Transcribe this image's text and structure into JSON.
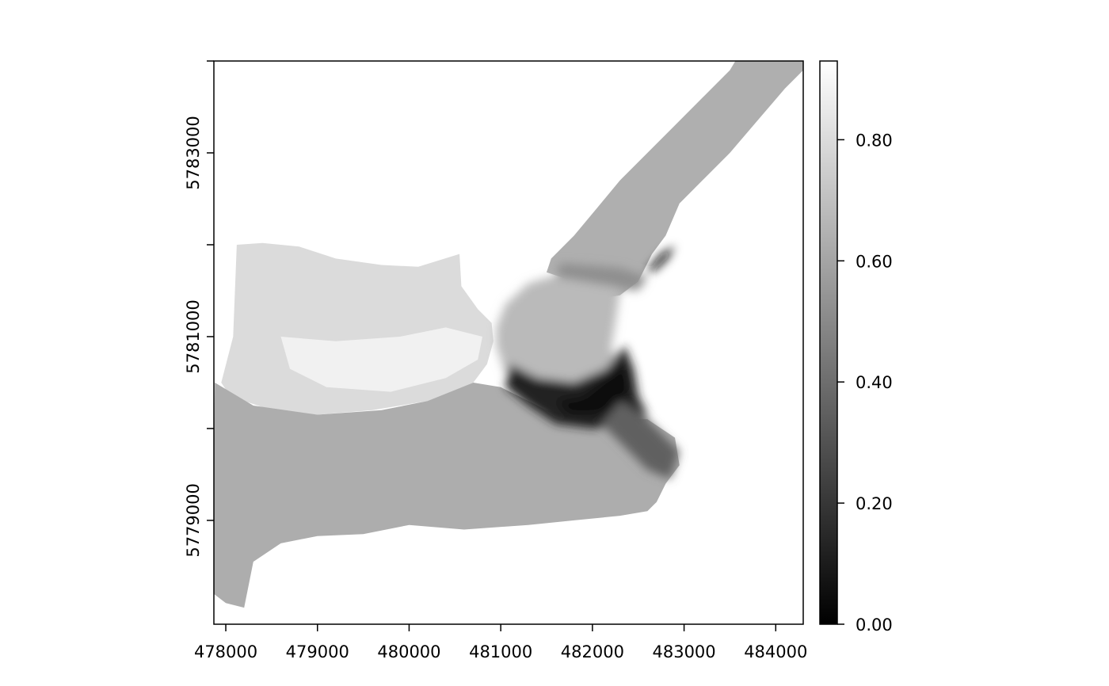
{
  "chart_data": {
    "type": "heatmap",
    "title": "",
    "xlabel": "",
    "ylabel": "",
    "xlim": [
      477870,
      484300
    ],
    "ylim": [
      5777870,
      5784000
    ],
    "x_ticks": [
      {
        "value": 478000,
        "label": "478000"
      },
      {
        "value": 479000,
        "label": "479000"
      },
      {
        "value": 480000,
        "label": "480000"
      },
      {
        "value": 481000,
        "label": "481000"
      },
      {
        "value": 482000,
        "label": "482000"
      },
      {
        "value": 483000,
        "label": "483000"
      },
      {
        "value": 484000,
        "label": "484000"
      }
    ],
    "y_ticks": [
      {
        "value": 5779000,
        "label": "5779000"
      },
      {
        "value": 5780000,
        "label": ""
      },
      {
        "value": 5781000,
        "label": "5781000"
      },
      {
        "value": 5782000,
        "label": ""
      },
      {
        "value": 5783000,
        "label": "5783000"
      },
      {
        "value": 5784000,
        "label": ""
      }
    ],
    "colorbar": {
      "min": 0.0,
      "max": 0.93,
      "colormap": "grayscale (black = low, white = high)",
      "ticks": [
        {
          "value": 0.0,
          "label": "0.00"
        },
        {
          "value": 0.2,
          "label": "0.20"
        },
        {
          "value": 0.4,
          "label": "0.40"
        },
        {
          "value": 0.6,
          "label": "0.60"
        },
        {
          "value": 0.8,
          "label": "0.80"
        }
      ]
    },
    "raster_regions": [
      {
        "region": "west plateau",
        "value": 0.8,
        "outline": [
          [
            478120,
            5782000
          ],
          [
            478400,
            5782020
          ],
          [
            478800,
            5781980
          ],
          [
            479200,
            5781850
          ],
          [
            479700,
            5781780
          ],
          [
            480100,
            5781760
          ],
          [
            480550,
            5781900
          ],
          [
            480570,
            5781550
          ],
          [
            480750,
            5781300
          ],
          [
            480900,
            5781150
          ],
          [
            480920,
            5780950
          ],
          [
            480850,
            5780700
          ],
          [
            480700,
            5780500
          ],
          [
            480200,
            5780300
          ],
          [
            479600,
            5780200
          ],
          [
            479000,
            5780150
          ],
          [
            478500,
            5780200
          ],
          [
            478050,
            5780350
          ],
          [
            477950,
            5780500
          ],
          [
            478080,
            5781000
          ],
          [
            478100,
            5781500
          ]
        ]
      },
      {
        "region": "west plateau ridge",
        "value": 0.88,
        "outline": [
          [
            478600,
            5781000
          ],
          [
            479200,
            5780950
          ],
          [
            479900,
            5781000
          ],
          [
            480400,
            5781100
          ],
          [
            480800,
            5781000
          ],
          [
            480750,
            5780750
          ],
          [
            480400,
            5780550
          ],
          [
            479800,
            5780400
          ],
          [
            479100,
            5780450
          ],
          [
            478700,
            5780650
          ]
        ]
      },
      {
        "region": "southern lowland",
        "value": 0.63,
        "outline": [
          [
            477880,
            5780500
          ],
          [
            478300,
            5780250
          ],
          [
            479000,
            5780150
          ],
          [
            479700,
            5780200
          ],
          [
            480200,
            5780300
          ],
          [
            480700,
            5780500
          ],
          [
            481000,
            5780450
          ],
          [
            481500,
            5780200
          ],
          [
            482000,
            5780100
          ],
          [
            482600,
            5780100
          ],
          [
            482900,
            5779900
          ],
          [
            482950,
            5779600
          ],
          [
            482800,
            5779400
          ],
          [
            482700,
            5779200
          ],
          [
            482600,
            5779100
          ],
          [
            482300,
            5779050
          ],
          [
            481800,
            5779000
          ],
          [
            481300,
            5778950
          ],
          [
            480600,
            5778900
          ],
          [
            480000,
            5778950
          ],
          [
            479500,
            5778850
          ],
          [
            479000,
            5778830
          ],
          [
            478600,
            5778750
          ],
          [
            478300,
            5778550
          ],
          [
            478200,
            5778050
          ],
          [
            478000,
            5778100
          ],
          [
            477870,
            5778200
          ],
          [
            477870,
            5779500
          ]
        ]
      },
      {
        "region": "central basin",
        "value": 0.68,
        "outline": [
          [
            481050,
            5781350
          ],
          [
            481300,
            5781580
          ],
          [
            481700,
            5781700
          ],
          [
            482100,
            5781650
          ],
          [
            482300,
            5781500
          ],
          [
            482250,
            5781150
          ],
          [
            482200,
            5780850
          ],
          [
            482400,
            5780700
          ],
          [
            482300,
            5780450
          ],
          [
            482000,
            5780350
          ],
          [
            481700,
            5780300
          ],
          [
            481350,
            5780400
          ],
          [
            481050,
            5780600
          ],
          [
            480950,
            5780900
          ],
          [
            480950,
            5781100
          ]
        ]
      },
      {
        "region": "north-east valley",
        "value": 0.64,
        "outline": [
          [
            482000,
            5781400
          ],
          [
            481800,
            5781600
          ],
          [
            481500,
            5781700
          ],
          [
            481550,
            5781850
          ],
          [
            481800,
            5782100
          ],
          [
            482050,
            5782400
          ],
          [
            482300,
            5782700
          ],
          [
            482600,
            5783000
          ],
          [
            482900,
            5783300
          ],
          [
            483200,
            5783600
          ],
          [
            483500,
            5783900
          ],
          [
            483650,
            5784150
          ],
          [
            483700,
            5784350
          ],
          [
            483900,
            5784100
          ],
          [
            484100,
            5784000
          ],
          [
            484300,
            5784000
          ],
          [
            484300,
            5783900
          ],
          [
            484100,
            5783700
          ],
          [
            483800,
            5783350
          ],
          [
            483500,
            5783000
          ],
          [
            483200,
            5782700
          ],
          [
            482950,
            5782450
          ],
          [
            482800,
            5782100
          ],
          [
            482650,
            5781900
          ],
          [
            482500,
            5781600
          ],
          [
            482300,
            5781450
          ]
        ]
      },
      {
        "region": "valley lower band",
        "value": 0.52,
        "outline": [
          [
            481600,
            5781650
          ],
          [
            481900,
            5781600
          ],
          [
            482200,
            5781550
          ],
          [
            482500,
            5781500
          ],
          [
            482600,
            5781650
          ],
          [
            482300,
            5781750
          ],
          [
            481900,
            5781780
          ],
          [
            481650,
            5781800
          ]
        ]
      },
      {
        "region": "dark trough",
        "value": 0.12,
        "outline": [
          [
            481100,
            5780700
          ],
          [
            481400,
            5780550
          ],
          [
            481800,
            5780500
          ],
          [
            482150,
            5780650
          ],
          [
            482350,
            5780900
          ],
          [
            482450,
            5780650
          ],
          [
            482500,
            5780350
          ],
          [
            482600,
            5780150
          ],
          [
            482400,
            5780050
          ],
          [
            482000,
            5780000
          ],
          [
            481600,
            5780050
          ],
          [
            481300,
            5780250
          ],
          [
            481050,
            5780450
          ]
        ]
      },
      {
        "region": "deep trough core",
        "value": 0.03,
        "outline": [
          [
            481600,
            5780300
          ],
          [
            481900,
            5780350
          ],
          [
            482150,
            5780550
          ],
          [
            482350,
            5780700
          ],
          [
            482400,
            5780450
          ],
          [
            482300,
            5780200
          ],
          [
            482000,
            5780150
          ],
          [
            481750,
            5780150
          ]
        ]
      },
      {
        "region": "eastern slope shadow",
        "value": 0.35,
        "outline": [
          [
            482300,
            5780300
          ],
          [
            482550,
            5780150
          ],
          [
            482800,
            5779900
          ],
          [
            482950,
            5779750
          ],
          [
            482850,
            5779450
          ],
          [
            482600,
            5779550
          ],
          [
            482300,
            5779850
          ],
          [
            482100,
            5780050
          ]
        ]
      },
      {
        "region": "north spur",
        "value": 0.05,
        "outline": [
          [
            482580,
            5781700
          ],
          [
            482750,
            5781900
          ],
          [
            482900,
            5781990
          ],
          [
            482820,
            5781850
          ],
          [
            482680,
            5781720
          ]
        ]
      }
    ]
  }
}
